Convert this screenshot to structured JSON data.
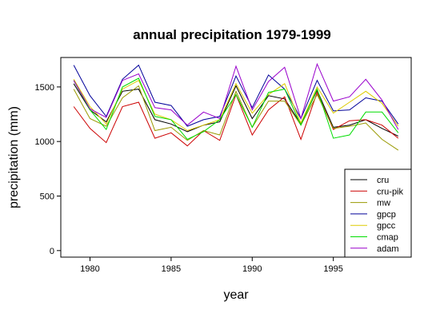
{
  "chart_data": {
    "type": "line",
    "title": "annual precipitation 1979-1999",
    "xlabel": "year",
    "ylabel": "precipitation (mm)",
    "xlim": [
      1978.2,
      1999.8
    ],
    "ylim": [
      -60,
      1770
    ],
    "x_ticks": [
      1980,
      1985,
      1990,
      1995
    ],
    "x_tick_labels": [
      "1980",
      "1985",
      "1990",
      "1995"
    ],
    "y_ticks": [
      0,
      500,
      1000,
      1500
    ],
    "y_tick_labels": [
      "0",
      "500",
      "1000",
      "1500"
    ],
    "grid": false,
    "legend_position": "bottom-right",
    "x": [
      1979,
      1980,
      1981,
      1982,
      1983,
      1984,
      1985,
      1986,
      1987,
      1988,
      1989,
      1990,
      1991,
      1992,
      1993,
      1994,
      1995,
      1996,
      1997,
      1998,
      1999
    ],
    "series": [
      {
        "name": "cru",
        "color": "#000000",
        "values": [
          1530,
          1290,
          1180,
          1460,
          1480,
          1200,
          1160,
          1090,
          1150,
          1180,
          1510,
          1210,
          1420,
          1390,
          1160,
          1470,
          1130,
          1150,
          1200,
          1120,
          1050
        ]
      },
      {
        "name": "cru-pik",
        "color": "#cc0000",
        "values": [
          1320,
          1120,
          990,
          1320,
          1360,
          1030,
          1080,
          960,
          1100,
          1010,
          1430,
          1060,
          1290,
          1410,
          1020,
          1450,
          1110,
          1190,
          1200,
          1150,
          1030
        ]
      },
      {
        "name": "mw",
        "color": "#999900",
        "values": [
          1480,
          1210,
          1140,
          1400,
          1510,
          1100,
          1130,
          1010,
          1100,
          1060,
          1460,
          1130,
          1370,
          1370,
          1150,
          1430,
          1120,
          1140,
          1170,
          1020,
          920
        ]
      },
      {
        "name": "gpcp",
        "color": "#000099",
        "values": [
          1700,
          1420,
          1230,
          1570,
          1700,
          1360,
          1330,
          1140,
          1200,
          1230,
          1600,
          1310,
          1610,
          1480,
          1210,
          1560,
          1280,
          1290,
          1400,
          1370,
          1160
        ]
      },
      {
        "name": "gpcc",
        "color": "#ddcc00",
        "values": [
          1570,
          1320,
          1160,
          1480,
          1560,
          1250,
          1200,
          1100,
          1150,
          1200,
          1530,
          1260,
          1430,
          1530,
          1170,
          1500,
          1260,
          1360,
          1460,
          1350,
          1140
        ]
      },
      {
        "name": "cmap",
        "color": "#00dd00",
        "values": [
          1560,
          1290,
          1110,
          1500,
          1580,
          1230,
          1200,
          1020,
          1090,
          1200,
          1430,
          1130,
          1450,
          1480,
          1150,
          1480,
          1030,
          1060,
          1270,
          1270,
          1080
        ]
      },
      {
        "name": "adam",
        "color": "#9900cc",
        "values": [
          1560,
          1300,
          1220,
          1560,
          1620,
          1310,
          1290,
          1150,
          1270,
          1210,
          1690,
          1290,
          1550,
          1680,
          1210,
          1710,
          1370,
          1410,
          1570,
          1380,
          1110
        ]
      }
    ]
  }
}
